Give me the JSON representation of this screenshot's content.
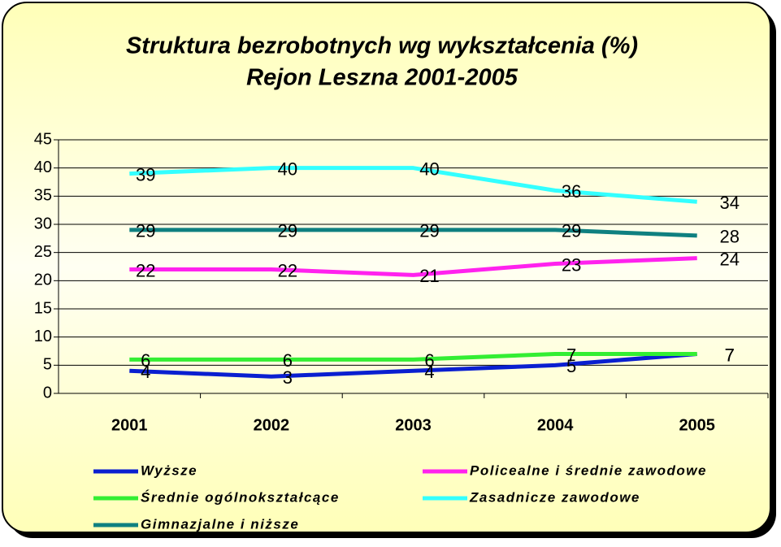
{
  "chart_data": {
    "type": "line",
    "title": "Struktura bezrobotnych wg wykształcenia (%)",
    "subtitle": "Rejon Leszna 2001-2005",
    "categories": [
      "2001",
      "2002",
      "2003",
      "2004",
      "2005"
    ],
    "series": [
      {
        "name": "Wyższe",
        "color": "#0a1fd0",
        "values": [
          4,
          3,
          4,
          5,
          7
        ]
      },
      {
        "name": "Policealne i średnie zawodowe",
        "color": "#ff22ee",
        "values": [
          22,
          22,
          21,
          23,
          24
        ]
      },
      {
        "name": "Średnie ogólnokształcące",
        "color": "#33ee33",
        "values": [
          6,
          6,
          6,
          7,
          7
        ]
      },
      {
        "name": "Zasadnicze zawodowe",
        "color": "#33ffff",
        "values": [
          39,
          40,
          40,
          36,
          34
        ]
      },
      {
        "name": "Gimnazjalne i niższe",
        "color": "#0f8080",
        "values": [
          29,
          29,
          29,
          29,
          28
        ]
      }
    ],
    "ylim": [
      0,
      45
    ],
    "yticks": [
      0,
      5,
      10,
      15,
      20,
      25,
      30,
      35,
      40,
      45
    ],
    "grid": true,
    "legend": "bottom"
  }
}
